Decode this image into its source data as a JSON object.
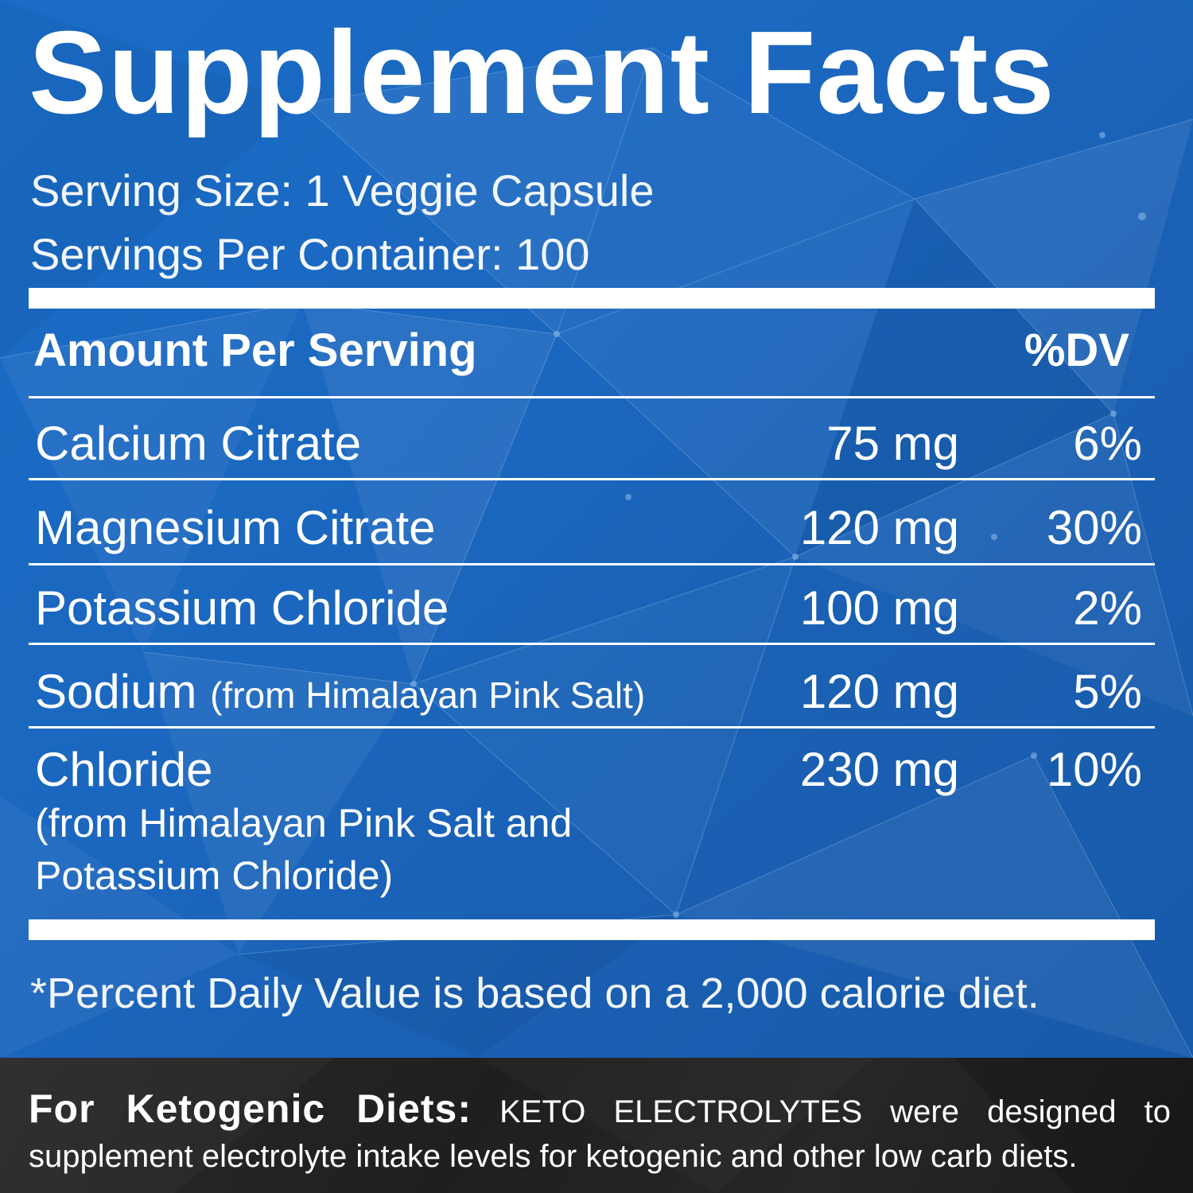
{
  "label": {
    "title": "Supplement Facts",
    "serving_size": "Serving Size: 1 Veggie Capsule",
    "servings_per_container": "Servings Per Container: 100",
    "header": {
      "amount_per_serving": "Amount Per Serving",
      "dv": "%DV"
    },
    "rows": [
      {
        "name": "Calcium Citrate",
        "note": "",
        "amount": "75 mg",
        "dv": "6%"
      },
      {
        "name": "Magnesium Citrate",
        "note": "",
        "amount": "120 mg",
        "dv": "30%"
      },
      {
        "name": "Potassium Chloride",
        "note": "",
        "amount": "100 mg",
        "dv": "2%"
      },
      {
        "name": "Sodium",
        "note": "(from Himalayan Pink Salt)",
        "amount": "120 mg",
        "dv": "5%"
      },
      {
        "name": "Chloride",
        "note_line1": "(from Himalayan Pink Salt and",
        "note_line2": "Potassium Chloride)",
        "amount": "230 mg",
        "dv": "10%"
      }
    ],
    "footnote": "*Percent Daily Value is based on a 2,000 calorie diet."
  },
  "keto": {
    "heading": "For Ketogenic Diets:",
    "body": "KETO ELECTROLYTES were designed to supplement electrolyte intake levels for ketogenic and other low carb diets."
  },
  "colors": {
    "panel": "#1a66c0",
    "dark_band": "#222222",
    "text": "#ffffff"
  }
}
